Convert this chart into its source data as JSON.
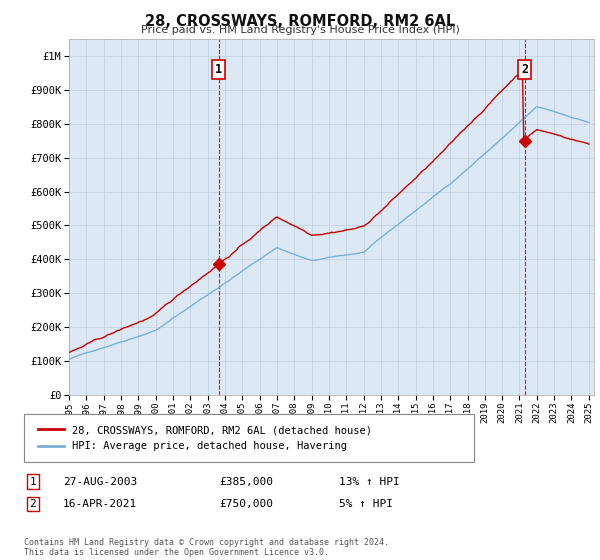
{
  "title": "28, CROSSWAYS, ROMFORD, RM2 6AL",
  "subtitle": "Price paid vs. HM Land Registry's House Price Index (HPI)",
  "ytick_values": [
    0,
    100000,
    200000,
    300000,
    400000,
    500000,
    600000,
    700000,
    800000,
    900000,
    1000000
  ],
  "ylim": [
    0,
    1050000
  ],
  "x_start_year": 1995,
  "x_end_year": 2025,
  "hpi_color": "#7bafd4",
  "price_color": "#cc0000",
  "chart_bg_color": "#dce9f5",
  "purchase1_year": 2003.65,
  "purchase1_price": 385000,
  "purchase2_year": 2021.29,
  "purchase2_price": 750000,
  "vline_color": "#cc0000",
  "legend_label1": "28, CROSSWAYS, ROMFORD, RM2 6AL (detached house)",
  "legend_label2": "HPI: Average price, detached house, Havering",
  "note1_num": "1",
  "note1_date": "27-AUG-2003",
  "note1_price": "£385,000",
  "note1_hpi": "13% ↑ HPI",
  "note2_num": "2",
  "note2_date": "16-APR-2021",
  "note2_price": "£750,000",
  "note2_hpi": "5% ↑ HPI",
  "footer": "Contains HM Land Registry data © Crown copyright and database right 2024.\nThis data is licensed under the Open Government Licence v3.0.",
  "background_color": "#ffffff",
  "grid_color": "#c0d0e0"
}
